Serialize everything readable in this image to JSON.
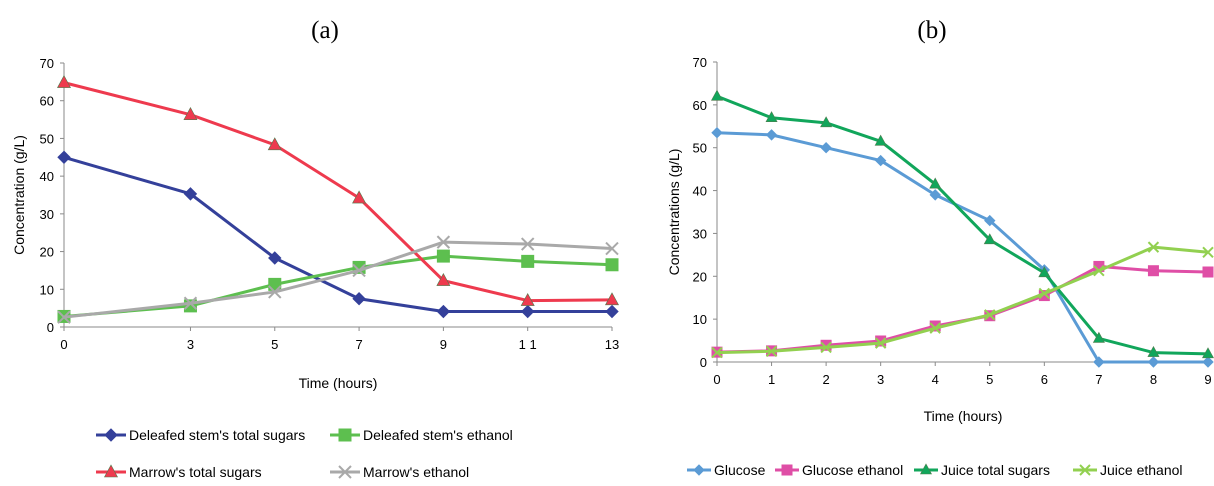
{
  "chart_data": [
    {
      "panel_label": "(a)",
      "type": "line",
      "xlabel": "Time (hours)",
      "ylabel": "Concentration (g/L)",
      "x": [
        0,
        3,
        5,
        7,
        9,
        11,
        13
      ],
      "x_ticks": [
        "0",
        "3",
        "5",
        "7",
        "9",
        "1 1",
        "13"
      ],
      "ylim": [
        0,
        70
      ],
      "y_ticks": [
        "0",
        "10",
        "20",
        "30",
        "40",
        "50",
        "60",
        "70"
      ],
      "grid": false,
      "legend_position": "bottom",
      "series": [
        {
          "name": "Deleafed stem's total sugars",
          "color": "#34409a",
          "marker": "diamond",
          "values": [
            45,
            35.3,
            18.3,
            7.5,
            4.1,
            4.1,
            4.1
          ]
        },
        {
          "name": "Deleafed stem's ethanol",
          "color": "#5dbf4f",
          "marker": "square",
          "values": [
            2.8,
            5.6,
            11.3,
            15.8,
            18.8,
            17.4,
            16.5
          ]
        },
        {
          "name": "Marrow's total sugars",
          "color": "#ee3a4e",
          "marker": "triangle",
          "values": [
            64.8,
            56.3,
            48.3,
            34.2,
            12.3,
            7,
            7.2
          ]
        },
        {
          "name": "Marrow's ethanol",
          "color": "#a9a9a9",
          "marker": "x",
          "values": [
            2.6,
            6.3,
            9.3,
            15,
            22.5,
            22,
            20.8
          ]
        }
      ]
    },
    {
      "panel_label": "(b)",
      "type": "line",
      "xlabel": "Time (hours)",
      "ylabel": "Concentrations (g/L)",
      "x": [
        0,
        1,
        2,
        3,
        4,
        5,
        6,
        7,
        8,
        9
      ],
      "x_ticks": [
        "0",
        "1",
        "2",
        "3",
        "4",
        "5",
        "6",
        "7",
        "8",
        "9"
      ],
      "ylim": [
        0,
        70
      ],
      "y_ticks": [
        "0",
        "10",
        "20",
        "30",
        "40",
        "50",
        "60",
        "70"
      ],
      "grid": false,
      "legend_position": "bottom",
      "series": [
        {
          "name": "Glucose",
          "color": "#5b9bd5",
          "marker": "diamond",
          "values": [
            53.5,
            53,
            50,
            47,
            39,
            33,
            21.5,
            0,
            0,
            0
          ]
        },
        {
          "name": "Glucose ethanol",
          "color": "#df4ea6",
          "marker": "square",
          "values": [
            2.3,
            2.6,
            3.9,
            4.9,
            8.4,
            10.8,
            15.5,
            22.3,
            21.3,
            21
          ]
        },
        {
          "name": "Juice total sugars",
          "color": "#11a65b",
          "marker": "triangle",
          "values": [
            62,
            57,
            55.8,
            51.5,
            41.5,
            28.5,
            20.8,
            5.5,
            2.2,
            1.9
          ]
        },
        {
          "name": "Juice ethanol",
          "color": "#92d050",
          "marker": "x",
          "values": [
            2.2,
            2.5,
            3.4,
            4.4,
            7.9,
            11,
            16,
            21.3,
            26.8,
            25.6
          ]
        }
      ]
    }
  ]
}
